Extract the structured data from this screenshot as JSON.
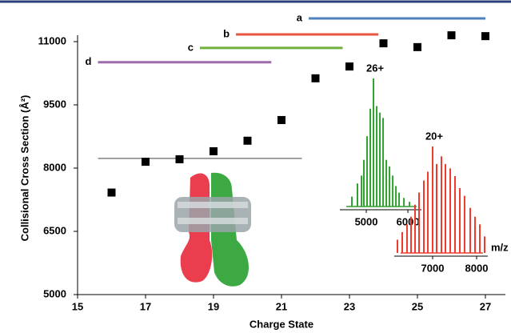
{
  "chart_data": [
    {
      "type": "scatter",
      "x_label": "Charge State",
      "y_label": "Collisional Cross Section (Å²)",
      "x": [
        16,
        17,
        18,
        19,
        20,
        21,
        22,
        23,
        24,
        25,
        26,
        27
      ],
      "values": [
        7420,
        8150,
        8210,
        8400,
        8650,
        9140,
        10130,
        10410,
        10960,
        10870,
        11150,
        11130
      ],
      "color": "#000000",
      "xlim": [
        15,
        27
      ],
      "xticks": [
        15,
        17,
        19,
        21,
        23,
        25,
        27
      ],
      "ylim": [
        5000,
        11000
      ],
      "yticks": [
        5000,
        6500,
        8000,
        9500,
        11000
      ],
      "ranges": [
        {
          "label": "a",
          "color": "#4f81bd",
          "x": [
            21.8,
            27
          ],
          "y": 11550
        },
        {
          "label": "b",
          "color": "#e8563f",
          "x": [
            19.66,
            23.85
          ],
          "y": 11170
        },
        {
          "label": "c",
          "color": "#70b03f",
          "x": [
            18.6,
            22.8
          ],
          "y": 10850
        },
        {
          "label": "d",
          "color": "#9d6aac",
          "x": [
            15.6,
            20.7
          ],
          "y": 10510
        }
      ],
      "reference_line": {
        "color": "#808080",
        "x": [
          15.6,
          21.6
        ],
        "y": 8230
      }
    },
    {
      "type": "spectrum",
      "annotation": "26+",
      "color": "#2ea12e",
      "x": [
        4654,
        4788,
        4885,
        4942,
        5019,
        5096,
        5173,
        5250,
        5327,
        5404,
        5481,
        5558,
        5635,
        5712,
        5788,
        5904,
        6038
      ],
      "values": [
        10,
        20,
        26,
        38,
        56,
        77,
        100,
        79,
        74,
        70,
        38,
        33,
        26,
        18,
        13,
        9,
        6
      ],
      "xlim": [
        4365,
        6325
      ],
      "xticks": [
        5000,
        6000
      ],
      "ylim": [
        0,
        100
      ]
    },
    {
      "type": "spectrum",
      "annotation": "20+",
      "x_label": "m/z",
      "color": "#ee3b2b",
      "x": [
        6200,
        6309,
        6418,
        6509,
        6600,
        6691,
        6800,
        6891,
        7000,
        7091,
        7200,
        7291,
        7400,
        7509,
        7618,
        7727,
        7855,
        7964,
        8073,
        8182
      ],
      "values": [
        15,
        22,
        29,
        36,
        47,
        58,
        69,
        77,
        100,
        84,
        91,
        84,
        80,
        73,
        62,
        55,
        44,
        36,
        29,
        18
      ],
      "xlim": [
        6127,
        8255
      ],
      "xticks": [
        7000,
        8000
      ],
      "ylim": [
        0,
        100
      ]
    }
  ]
}
